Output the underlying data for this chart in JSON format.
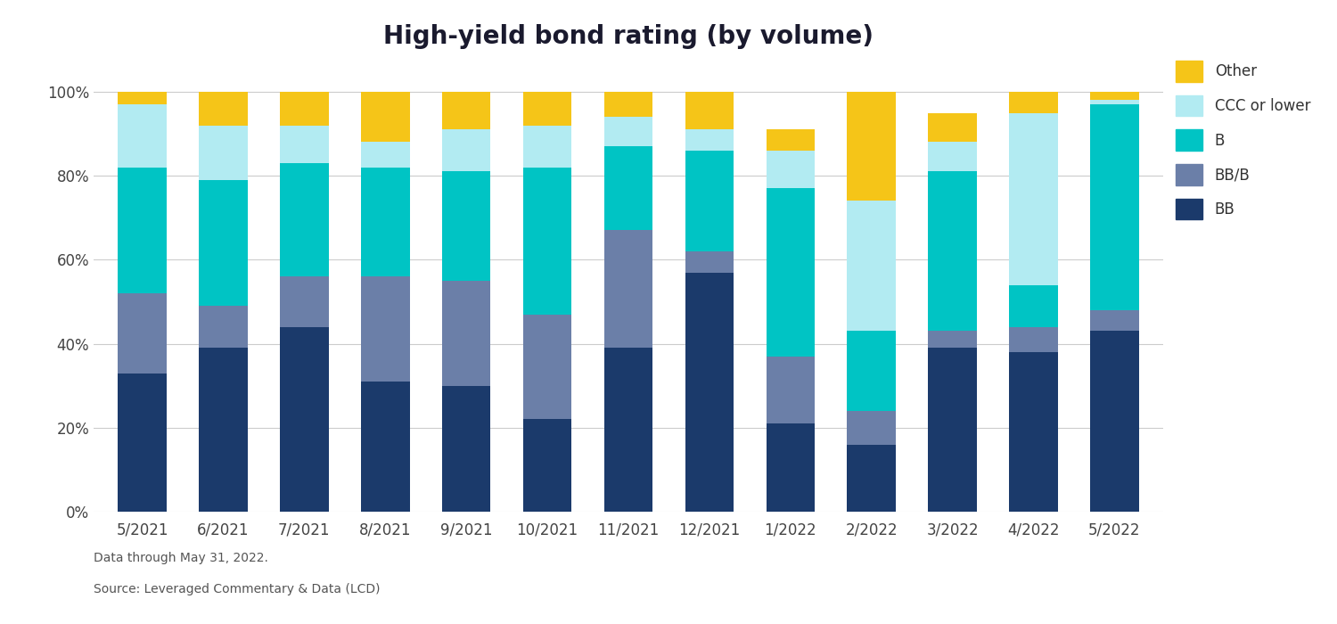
{
  "categories": [
    "5/2021",
    "6/2021",
    "7/2021",
    "8/2021",
    "9/2021",
    "10/2021",
    "11/2021",
    "12/2021",
    "1/2022",
    "2/2022",
    "3/2022",
    "4/2022",
    "5/2022"
  ],
  "BB": [
    33,
    39,
    44,
    31,
    30,
    22,
    39,
    57,
    21,
    16,
    39,
    38,
    43
  ],
  "BB_B": [
    19,
    10,
    12,
    25,
    25,
    25,
    28,
    5,
    16,
    8,
    4,
    6,
    5
  ],
  "B": [
    30,
    30,
    27,
    26,
    26,
    35,
    20,
    24,
    40,
    19,
    38,
    10,
    49
  ],
  "CCC": [
    15,
    13,
    9,
    6,
    10,
    10,
    7,
    5,
    9,
    31,
    7,
    41,
    1
  ],
  "Other": [
    3,
    8,
    8,
    12,
    9,
    8,
    6,
    9,
    5,
    26,
    7,
    5,
    2
  ],
  "colors": {
    "BB": "#1b3a6b",
    "BB_B": "#6b7fa8",
    "B": "#00c4c4",
    "CCC": "#b2ebf2",
    "Other": "#f5c518"
  },
  "legend_labels": [
    "Other",
    "CCC or lower",
    "B",
    "BB/B",
    "BB"
  ],
  "title": "High-yield bond rating (by volume)",
  "title_fontsize": 20,
  "footer_line1": "Data through May 31, 2022.",
  "footer_line2": "Source: Leveraged Commentary & Data (LCD)",
  "background_color": "#ffffff",
  "bar_width": 0.6
}
